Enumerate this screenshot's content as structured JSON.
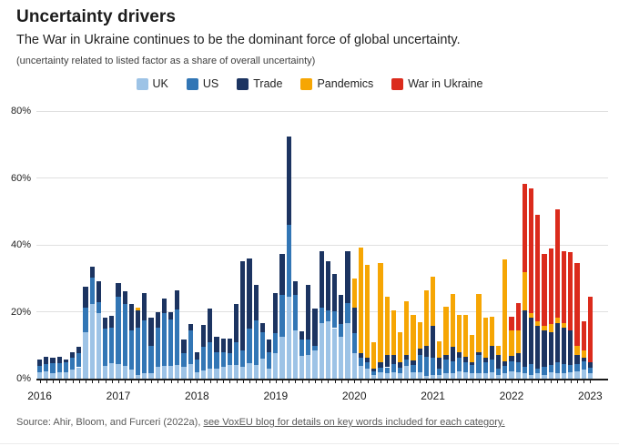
{
  "header": {
    "title": "Uncertainty drivers",
    "subtitle": "The War in Ukraine continues to be the dominant force of global uncertainty.",
    "note": "(uncertainty related to listed factor as a share of overall uncertainty)"
  },
  "source": {
    "prefix": "Source: Ahir, Bloom, and Furceri (2022a), ",
    "link_text": "see VoxEU blog for details on key words included for each category."
  },
  "chart_data": {
    "type": "bar",
    "stacked": true,
    "title": "Uncertainty drivers",
    "ylabel": "share of overall uncertainty (%)",
    "ylim": [
      0,
      80
    ],
    "yticks": [
      0,
      20,
      40,
      60,
      80
    ],
    "ytick_suffix": "%",
    "grid": "horizontal",
    "legend_position": "top",
    "x_year_labels": [
      "2016",
      "2017",
      "2018",
      "2019",
      "2020",
      "2021",
      "2022",
      "2023"
    ],
    "x": [
      "2016-01",
      "2016-02",
      "2016-03",
      "2016-04",
      "2016-05",
      "2016-06",
      "2016-07",
      "2016-08",
      "2016-09",
      "2016-10",
      "2016-11",
      "2016-12",
      "2017-01",
      "2017-02",
      "2017-03",
      "2017-04",
      "2017-05",
      "2017-06",
      "2017-07",
      "2017-08",
      "2017-09",
      "2017-10",
      "2017-11",
      "2017-12",
      "2018-01",
      "2018-02",
      "2018-03",
      "2018-04",
      "2018-05",
      "2018-06",
      "2018-07",
      "2018-08",
      "2018-09",
      "2018-10",
      "2018-11",
      "2018-12",
      "2019-01",
      "2019-02",
      "2019-03",
      "2019-04",
      "2019-05",
      "2019-06",
      "2019-07",
      "2019-08",
      "2019-09",
      "2019-10",
      "2019-11",
      "2019-12",
      "2020-01",
      "2020-02",
      "2020-03",
      "2020-04",
      "2020-05",
      "2020-06",
      "2020-07",
      "2020-08",
      "2020-09",
      "2020-10",
      "2020-11",
      "2020-12",
      "2021-01",
      "2021-02",
      "2021-03",
      "2021-04",
      "2021-05",
      "2021-06",
      "2021-07",
      "2021-08",
      "2021-09",
      "2021-10",
      "2021-11",
      "2021-12",
      "2022-01",
      "2022-02",
      "2022-03",
      "2022-04",
      "2022-05",
      "2022-06",
      "2022-07",
      "2022-08",
      "2022-09",
      "2022-10",
      "2022-11",
      "2022-12",
      "2023-01"
    ],
    "series": [
      {
        "name": "UK",
        "color": "#9dc3e6",
        "values": [
          2.0,
          2.2,
          1.5,
          2.0,
          2.0,
          2.8,
          3.4,
          14.0,
          22.2,
          19.6,
          3.9,
          4.6,
          4.4,
          3.9,
          2.6,
          1.2,
          1.5,
          1.6,
          3.5,
          3.7,
          3.9,
          4.2,
          3.5,
          4.4,
          2.0,
          2.5,
          3.0,
          3.0,
          3.5,
          4.0,
          4.0,
          3.5,
          4.5,
          4.0,
          6.0,
          3.0,
          7.6,
          12.6,
          24.5,
          14.5,
          6.7,
          7.1,
          8.5,
          16.7,
          17.2,
          15.1,
          12.6,
          16.7,
          7.6,
          3.9,
          3.0,
          1.2,
          1.8,
          1.6,
          2.0,
          1.5,
          3.9,
          2.0,
          2.0,
          0.7,
          1.2,
          1.0,
          1.6,
          1.6,
          2.1,
          2.0,
          1.5,
          1.6,
          1.5,
          1.8,
          1.0,
          1.6,
          2.1,
          2.0,
          1.6,
          1.0,
          1.5,
          1.0,
          2.0,
          1.5,
          1.5,
          2.0,
          2.1,
          2.6,
          1.6
        ]
      },
      {
        "name": "US",
        "color": "#3276b5",
        "values": [
          1.8,
          2.2,
          3.0,
          2.6,
          2.8,
          3.4,
          4.2,
          7.3,
          7.9,
          3.2,
          11.0,
          10.7,
          20.1,
          18.3,
          11.8,
          14.1,
          15.9,
          8.3,
          11.8,
          15.8,
          13.7,
          16.6,
          4.1,
          10.0,
          3.6,
          7.0,
          8.0,
          5.0,
          4.5,
          3.5,
          7.0,
          5.0,
          10.5,
          13.5,
          8.0,
          5.0,
          5.9,
          12.3,
          21.4,
          10.5,
          5.0,
          4.6,
          1.4,
          4.6,
          3.2,
          5.1,
          3.7,
          5.9,
          5.9,
          2.3,
          1.8,
          1.1,
          1.6,
          1.8,
          2.3,
          1.8,
          1.8,
          2.1,
          5.0,
          5.7,
          5.0,
          2.1,
          4.2,
          3.7,
          4.1,
          3.0,
          2.5,
          5.5,
          3.3,
          4.0,
          2.1,
          2.1,
          3.2,
          3.0,
          1.9,
          3.4,
          1.5,
          2.5,
          2.0,
          3.5,
          2.9,
          2.0,
          2.3,
          2.7,
          1.8
        ]
      },
      {
        "name": "Trade",
        "color": "#1c3461",
        "values": [
          2.0,
          2.0,
          1.7,
          1.8,
          1.0,
          1.8,
          2.0,
          6.1,
          3.5,
          6.2,
          3.2,
          3.5,
          4.1,
          3.9,
          7.8,
          5.0,
          8.2,
          8.4,
          4.6,
          4.5,
          2.3,
          5.5,
          4.1,
          1.9,
          2.4,
          6.5,
          10.0,
          4.6,
          4.0,
          4.5,
          11.2,
          26.5,
          21.0,
          10.6,
          2.7,
          3.7,
          12.0,
          12.4,
          26.5,
          4.0,
          2.5,
          16.4,
          11.1,
          16.9,
          14.8,
          11.1,
          8.6,
          15.6,
          7.8,
          1.4,
          1.4,
          0.7,
          1.4,
          3.6,
          2.7,
          1.7,
          1.4,
          1.4,
          2.0,
          3.5,
          9.6,
          3.1,
          1.3,
          4.1,
          1.8,
          1.5,
          1.0,
          0.7,
          1.4,
          4.1,
          4.0,
          1.6,
          1.4,
          2.5,
          16.9,
          13.7,
          12.8,
          10.9,
          10.0,
          11.7,
          10.9,
          10.5,
          2.7,
          1.0,
          1.4
        ]
      },
      {
        "name": "Pandemics",
        "color": "#f6a604",
        "values": [
          0,
          0,
          0,
          0,
          0,
          0,
          0,
          0,
          0,
          0,
          0,
          0,
          0,
          0,
          0,
          1.0,
          0,
          0,
          0,
          0,
          0,
          0,
          0,
          0,
          0,
          0,
          0,
          0,
          0,
          0,
          0,
          0,
          0,
          0,
          0,
          0,
          0,
          0,
          0,
          0,
          0,
          0,
          0,
          0,
          0,
          0,
          0,
          0,
          8.5,
          31.7,
          27.9,
          8.0,
          29.7,
          17.5,
          13.4,
          9.0,
          16.0,
          13.5,
          8.0,
          16.4,
          14.6,
          5.0,
          14.5,
          16.0,
          11.0,
          12.5,
          8.1,
          17.6,
          11.9,
          8.6,
          2.8,
          30.3,
          7.6,
          7.0,
          11.4,
          1.6,
          1.4,
          1.4,
          2.3,
          1.4,
          1.4,
          0,
          2.8,
          2.0,
          0
        ]
      },
      {
        "name": "War in Ukraine",
        "color": "#db2b1c",
        "values": [
          0,
          0,
          0,
          0,
          0,
          0,
          0,
          0,
          0,
          0,
          0,
          0,
          0,
          0,
          0,
          0,
          0,
          0,
          0,
          0,
          0,
          0,
          0,
          0,
          0,
          0,
          0,
          0,
          0,
          0,
          0,
          0,
          0,
          0,
          0,
          0,
          0,
          0,
          0,
          0,
          0,
          0,
          0,
          0,
          0,
          0,
          0,
          0,
          0,
          0,
          0,
          0,
          0,
          0,
          0,
          0,
          0,
          0,
          0,
          0,
          0,
          0,
          0,
          0,
          0,
          0,
          0,
          0,
          0,
          0,
          0,
          0,
          4.2,
          8.0,
          26.3,
          37.2,
          31.9,
          21.6,
          22.6,
          32.4,
          21.3,
          23.2,
          24.6,
          8.9,
          19.7
        ]
      }
    ]
  }
}
